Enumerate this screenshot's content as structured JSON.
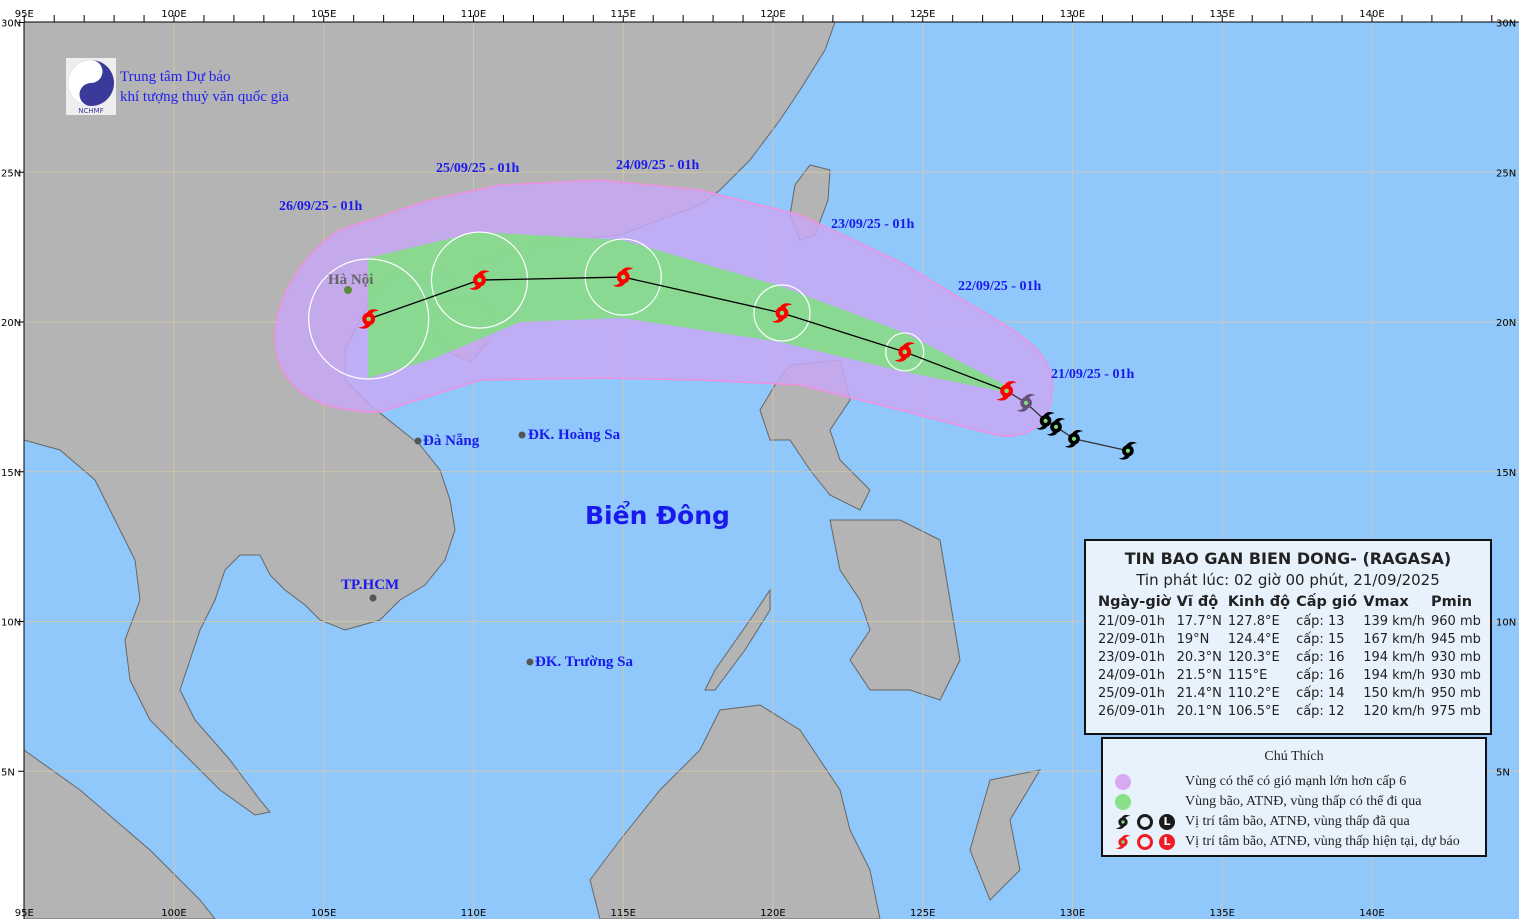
{
  "map": {
    "longitude_ticks": [
      "95E",
      "100E",
      "105E",
      "110E",
      "115E",
      "120E",
      "125E",
      "130E",
      "135E",
      "140E"
    ],
    "latitude_ticks": [
      "30N",
      "25N",
      "20N",
      "15N",
      "10N",
      "5N"
    ],
    "colors": {
      "sea": "#90c8fc",
      "land": "#b4b4b4",
      "wind_zone": "#c0b0f4",
      "track_zone": "#80e080",
      "forecast": "#ff0000",
      "past": "#000000"
    }
  },
  "organization": {
    "line1": "Trung tâm Dự báo",
    "line2": "khí tượng thuỷ văn quốc gia",
    "logo_text": "NCHMF"
  },
  "places": {
    "hanoi": "Hà Nội",
    "danang": "Đà Nẵng",
    "hoangsa": "ĐK. Hoàng Sa",
    "hcm": "TP.HCM",
    "truongsa": "ĐK. Trường Sa",
    "sea": "Biển Đông"
  },
  "date_labels": [
    "21/09/25 - 01h",
    "22/09/25 - 01h",
    "23/09/25 - 01h",
    "24/09/25 - 01h",
    "25/09/25 - 01h",
    "26/09/25 - 01h"
  ],
  "forecast_track": [
    {
      "lat": 17.7,
      "lon": 127.8
    },
    {
      "lat": 19.0,
      "lon": 124.4
    },
    {
      "lat": 20.3,
      "lon": 120.3
    },
    {
      "lat": 21.5,
      "lon": 115.0
    },
    {
      "lat": 21.4,
      "lon": 110.2
    },
    {
      "lat": 20.1,
      "lon": 106.5
    }
  ],
  "past_track": [
    {
      "lat": 17.3,
      "lon": 128.45
    },
    {
      "lat": 16.7,
      "lon": 129.1
    },
    {
      "lat": 16.5,
      "lon": 129.45
    },
    {
      "lat": 16.1,
      "lon": 130.05
    },
    {
      "lat": 15.7,
      "lon": 131.85
    }
  ],
  "info": {
    "title": "TIN BAO GAN BIEN DONG- (RAGASA)",
    "issued": "Tin phát lúc: 02 giờ 00 phút, 21/09/2025",
    "headers": [
      "Ngày-giờ",
      "Vĩ độ",
      "Kinh độ",
      "Cấp gió",
      "Vmax",
      "Pmin"
    ],
    "rows": [
      [
        "21/09-01h",
        "17.7°N",
        "127.8°E",
        "cấp: 13",
        "139 km/h",
        "960 mb"
      ],
      [
        "22/09-01h",
        "19°N",
        "124.4°E",
        "cấp: 15",
        "167 km/h",
        "945 mb"
      ],
      [
        "23/09-01h",
        "20.3°N",
        "120.3°E",
        "cấp: 16",
        "194 km/h",
        "930 mb"
      ],
      [
        "24/09-01h",
        "21.5°N",
        "115°E",
        "cấp: 16",
        "194 km/h",
        "930 mb"
      ],
      [
        "25/09-01h",
        "21.4°N",
        "110.2°E",
        "cấp: 14",
        "150 km/h",
        "950 mb"
      ],
      [
        "26/09-01h",
        "20.1°N",
        "106.5°E",
        "cấp: 12",
        "120 km/h",
        "975 mb"
      ]
    ]
  },
  "legend": {
    "title": "Chú Thích",
    "items": [
      {
        "label": "Vùng có thể có gió mạnh lớn hơn cấp 6",
        "color": "#d8a8f0"
      },
      {
        "label": "Vùng bão, ATNĐ, vùng thấp có thể đi qua",
        "color": "#88e088"
      },
      {
        "label": "Vị trí tâm bão, ATNĐ, vùng thấp đã qua",
        "color": "#1a1a1a"
      },
      {
        "label": "Vị trí tâm bão, ATNĐ, vùng thấp hiện tại, dự báo",
        "color": "#ee1c24"
      }
    ]
  }
}
